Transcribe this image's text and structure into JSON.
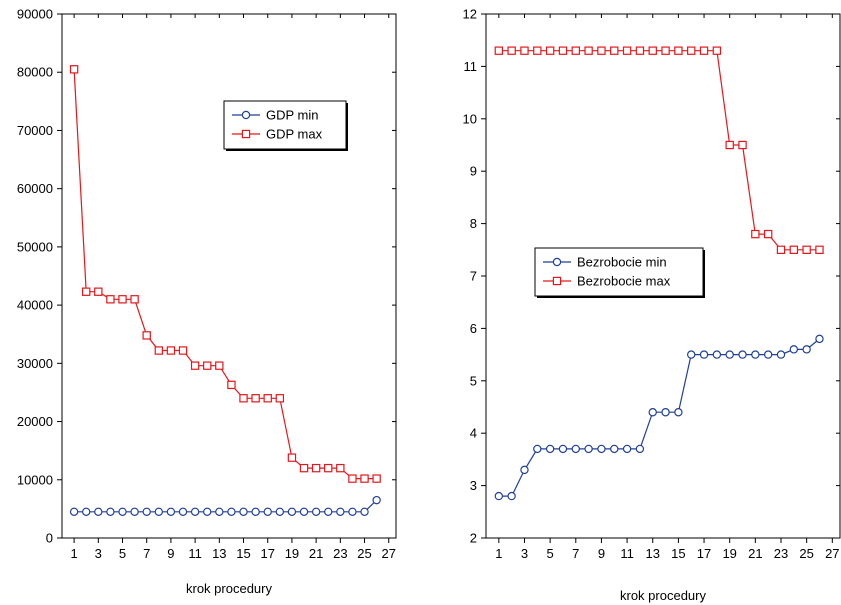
{
  "chart_data": [
    {
      "type": "line",
      "xlabel": "krok procedury",
      "ylabel": "",
      "xlim": [
        0,
        27.6
      ],
      "ylim": [
        0,
        90000
      ],
      "x_ticks": [
        1,
        3,
        5,
        7,
        9,
        11,
        13,
        15,
        17,
        19,
        21,
        23,
        25,
        27
      ],
      "y_ticks": [
        0,
        10000,
        20000,
        30000,
        40000,
        50000,
        60000,
        70000,
        80000,
        90000
      ],
      "legend": "top-right",
      "grid": false,
      "x": [
        1,
        2,
        3,
        4,
        5,
        6,
        7,
        8,
        9,
        10,
        11,
        12,
        13,
        14,
        15,
        16,
        17,
        18,
        19,
        20,
        21,
        22,
        23,
        24,
        25,
        26
      ],
      "series": [
        {
          "name": "GDP min",
          "color": "#1f3f9a",
          "marker": "circle",
          "values": [
            4500,
            4500,
            4500,
            4500,
            4500,
            4500,
            4500,
            4500,
            4500,
            4500,
            4500,
            4500,
            4500,
            4500,
            4500,
            4500,
            4500,
            4500,
            4500,
            4500,
            4500,
            4500,
            4500,
            4500,
            4500,
            6500
          ]
        },
        {
          "name": "GDP max",
          "color": "#e8161b",
          "marker": "square",
          "values": [
            80500,
            42300,
            42300,
            41000,
            41000,
            41000,
            34800,
            32200,
            32200,
            32200,
            29600,
            29600,
            29600,
            26300,
            24000,
            24000,
            24000,
            24000,
            13800,
            12000,
            12000,
            12000,
            12000,
            10200,
            10200,
            10200
          ]
        }
      ]
    },
    {
      "type": "line",
      "xlabel": "krok procedury",
      "ylabel": "",
      "xlim": [
        0,
        27.6
      ],
      "ylim": [
        2,
        12
      ],
      "x_ticks": [
        1,
        3,
        5,
        7,
        9,
        11,
        13,
        15,
        17,
        19,
        21,
        23,
        25,
        27
      ],
      "y_ticks": [
        2,
        3,
        4,
        5,
        6,
        7,
        8,
        9,
        10,
        11,
        12
      ],
      "legend": "center-left",
      "grid": false,
      "x": [
        1,
        2,
        3,
        4,
        5,
        6,
        7,
        8,
        9,
        10,
        11,
        12,
        13,
        14,
        15,
        16,
        17,
        18,
        19,
        20,
        21,
        22,
        23,
        24,
        25,
        26
      ],
      "series": [
        {
          "name": "Bezrobocie min",
          "color": "#1f3f9a",
          "marker": "circle",
          "values": [
            2.8,
            2.8,
            3.3,
            3.7,
            3.7,
            3.7,
            3.7,
            3.7,
            3.7,
            3.7,
            3.7,
            3.7,
            4.4,
            4.4,
            4.4,
            5.5,
            5.5,
            5.5,
            5.5,
            5.5,
            5.5,
            5.5,
            5.5,
            5.6,
            5.6,
            5.8
          ]
        },
        {
          "name": "Bezrobocie max",
          "color": "#e8161b",
          "marker": "square",
          "values": [
            11.3,
            11.3,
            11.3,
            11.3,
            11.3,
            11.3,
            11.3,
            11.3,
            11.3,
            11.3,
            11.3,
            11.3,
            11.3,
            11.3,
            11.3,
            11.3,
            11.3,
            11.3,
            9.5,
            9.5,
            7.8,
            7.8,
            7.5,
            7.5,
            7.5,
            7.5
          ]
        }
      ]
    }
  ]
}
